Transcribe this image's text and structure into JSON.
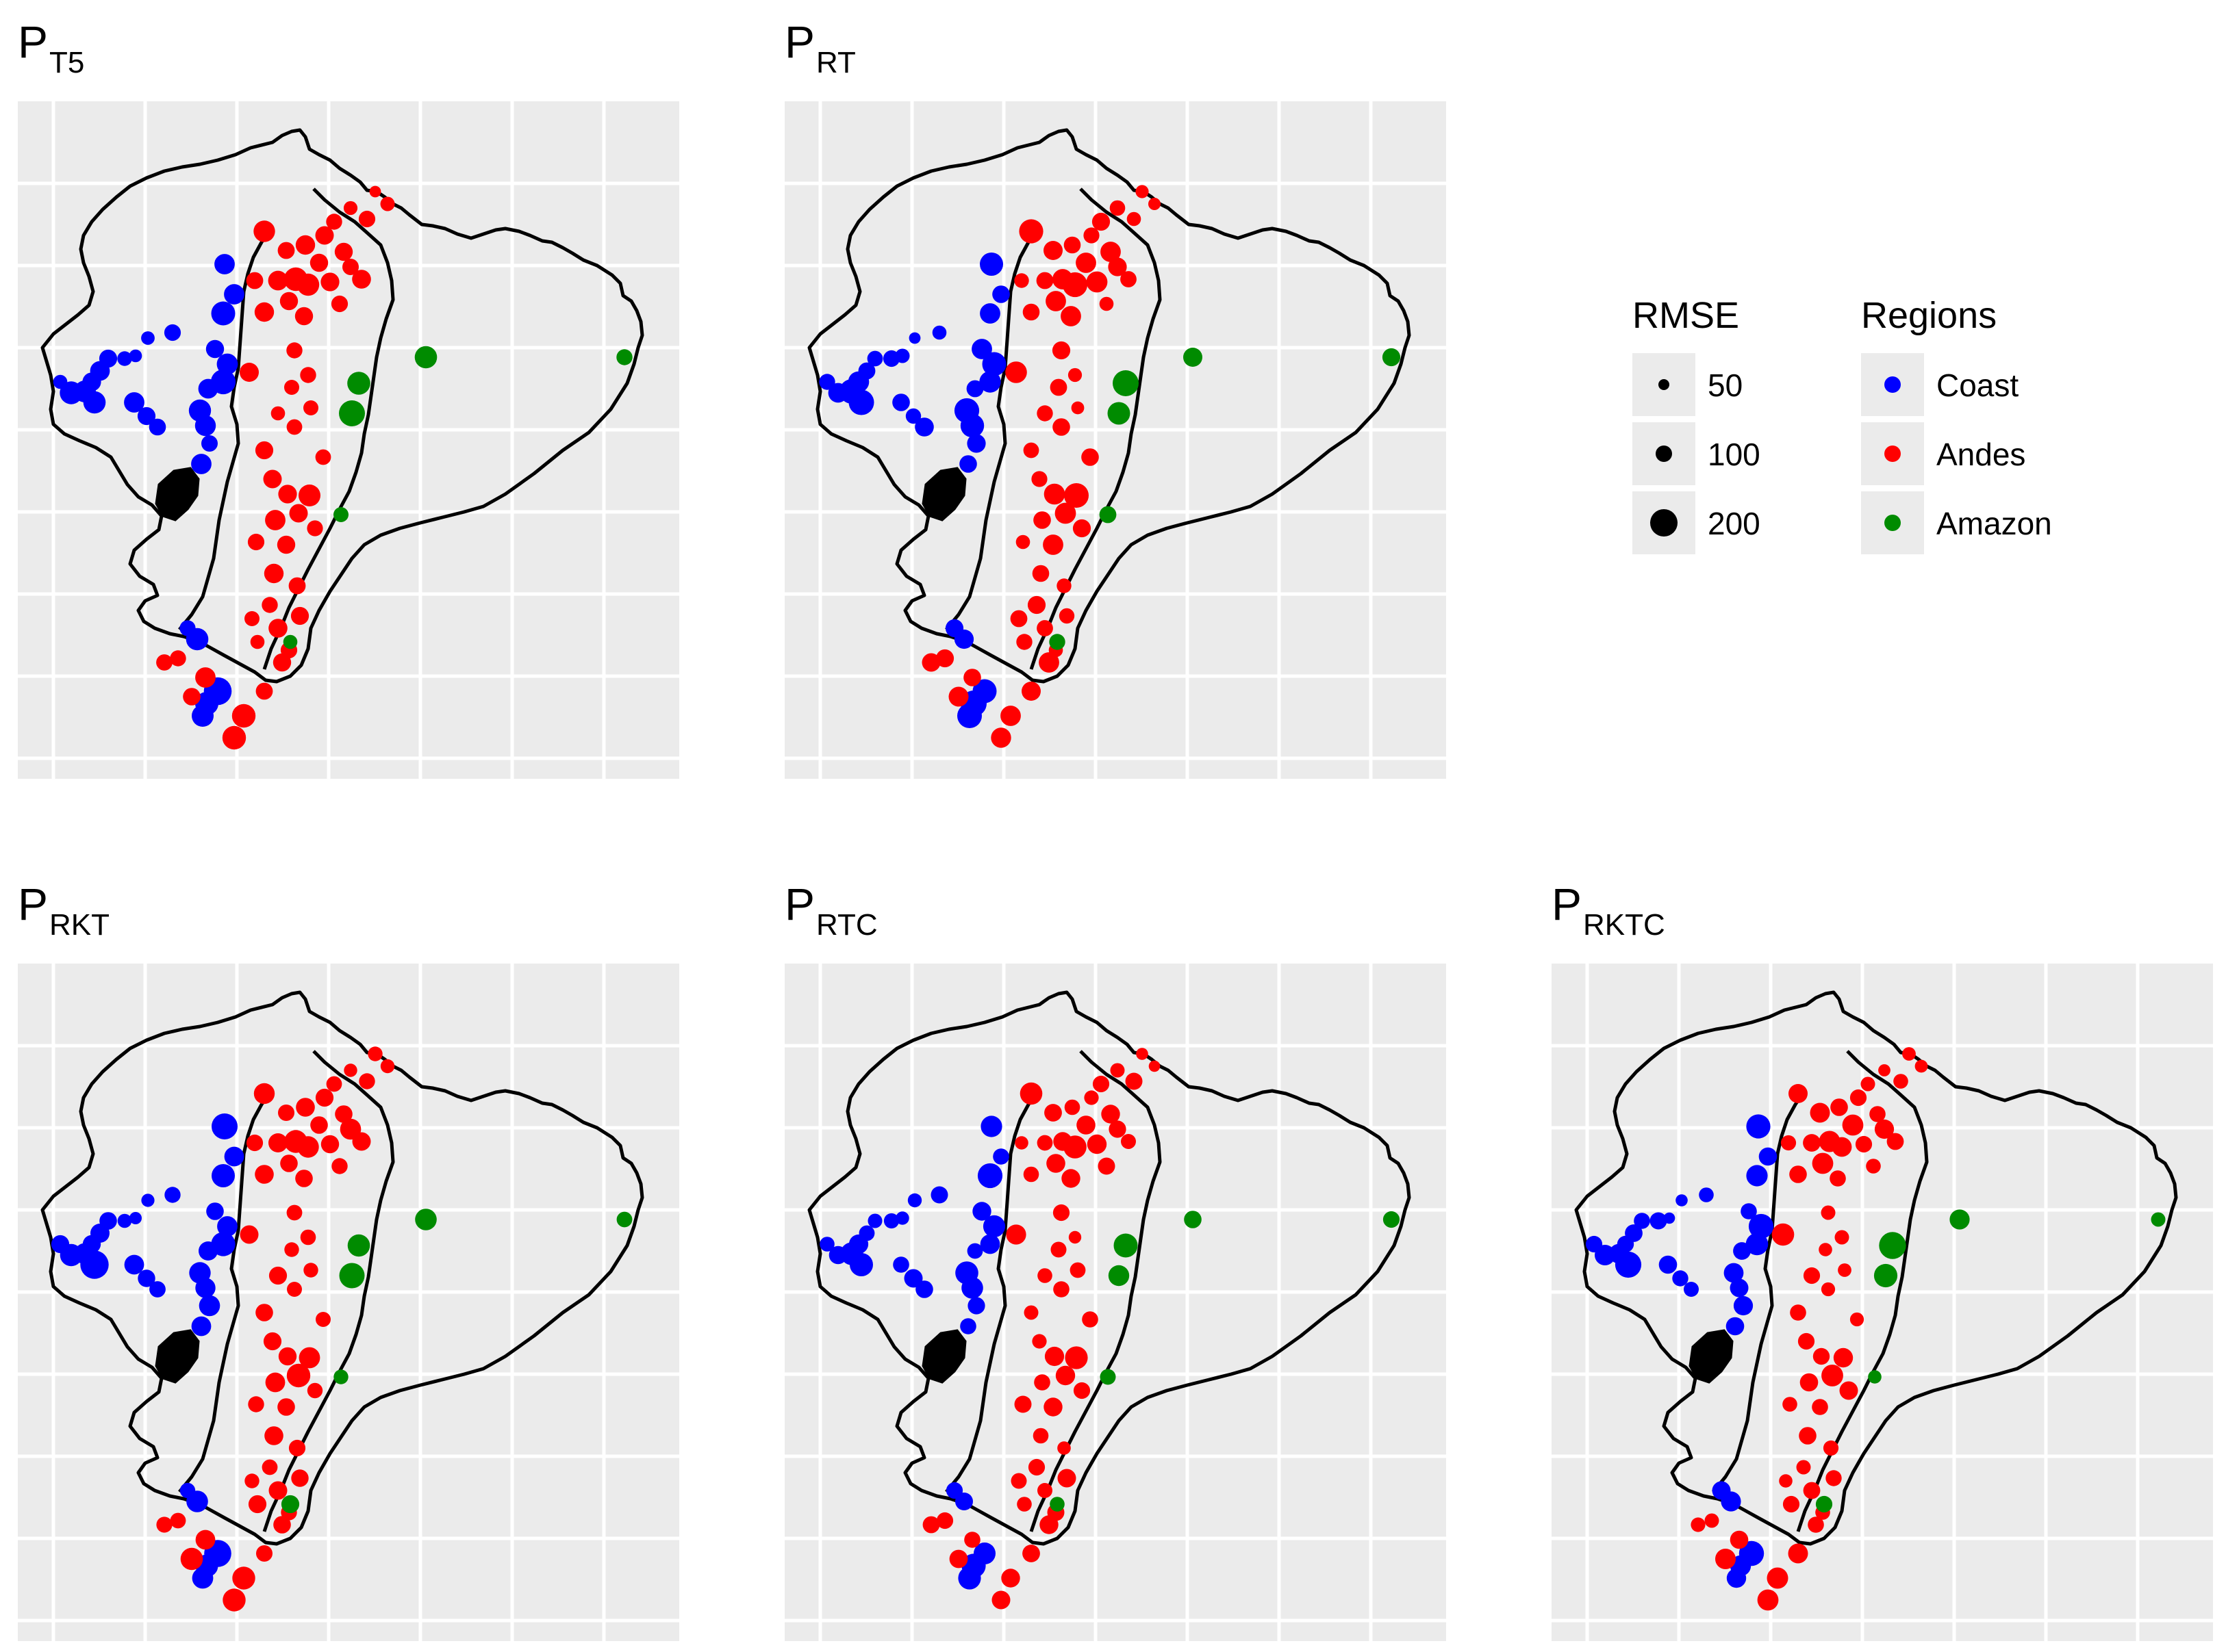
{
  "panels": [
    {
      "id": "PT5",
      "main": "P",
      "sub": "T5"
    },
    {
      "id": "PRT",
      "main": "P",
      "sub": "RT"
    },
    {
      "id": "PRKT",
      "main": "P",
      "sub": "RKT"
    },
    {
      "id": "PRTC",
      "main": "P",
      "sub": "RTC"
    },
    {
      "id": "PRKTC",
      "main": "P",
      "sub": "RKTC"
    }
  ],
  "legend": {
    "rmse": {
      "title": "RMSE",
      "items": [
        {
          "label": "50",
          "value": 50
        },
        {
          "label": "100",
          "value": 100
        },
        {
          "label": "200",
          "value": 200
        }
      ]
    },
    "regions": {
      "title": "Regions",
      "items": [
        {
          "label": "Coast",
          "color": "#0000ff"
        },
        {
          "label": "Andes",
          "color": "#ff0000"
        },
        {
          "label": "Amazon",
          "color": "#008b00"
        }
      ]
    }
  },
  "colors": {
    "panel_background": "#ebebeb",
    "grid": "#ffffff",
    "outline": "#000000",
    "coast": "#0000ff",
    "andes": "#ff0000",
    "amazon": "#008b00"
  }
}
